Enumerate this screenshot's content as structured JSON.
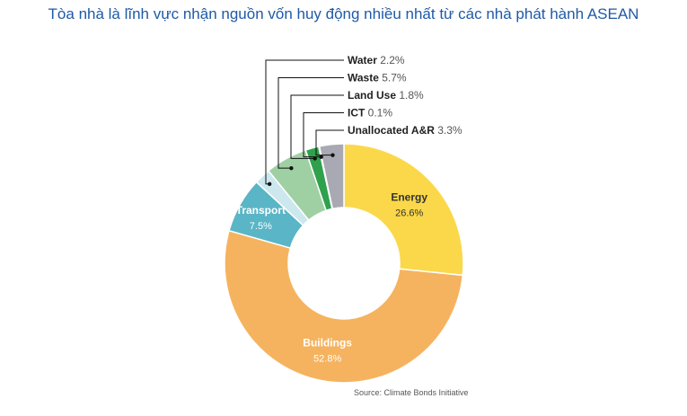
{
  "title": "Tòa nhà là lĩnh vực nhận nguồn vốn huy động nhiều nhất từ các nhà phát hành ASEAN",
  "source": "Source: Climate Bonds Initiative",
  "chart_data": {
    "type": "pie",
    "donut": true,
    "title": "Tòa nhà là lĩnh vực nhận nguồn vốn huy động nhiều nhất từ các nhà phát hành ASEAN",
    "slices": [
      {
        "name": "Energy",
        "value": 26.6,
        "label": "26.6%",
        "color": "#fbd84a"
      },
      {
        "name": "Buildings",
        "value": 52.8,
        "label": "52.8%",
        "color": "#f5b35f"
      },
      {
        "name": "Transport",
        "value": 7.5,
        "label": "7.5%",
        "color": "#5ab5c6"
      },
      {
        "name": "Water",
        "value": 2.2,
        "label": "2.2%",
        "color": "#cce8ee"
      },
      {
        "name": "Waste",
        "value": 5.7,
        "label": "5.7%",
        "color": "#9fd0a4"
      },
      {
        "name": "Land Use",
        "value": 1.8,
        "label": "1.8%",
        "color": "#2fa14c"
      },
      {
        "name": "ICT",
        "value": 0.1,
        "label": "0.1%",
        "color": "#1f7a3a"
      },
      {
        "name": "Unallocated A&R",
        "value": 3.3,
        "label": "3.3%",
        "color": "#a9a9b3"
      }
    ],
    "legend": "callouts"
  }
}
